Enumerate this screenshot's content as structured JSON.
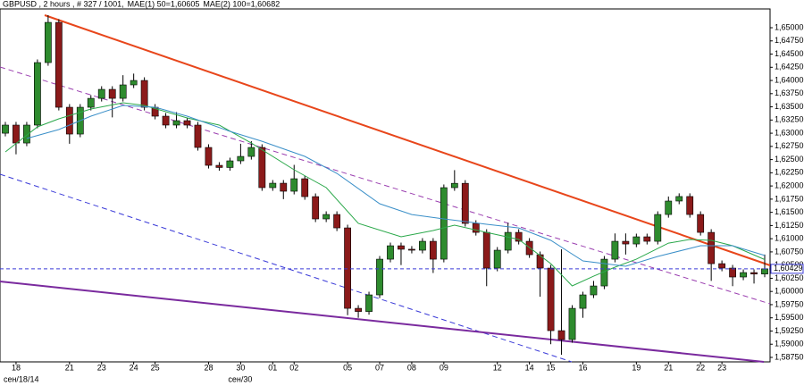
{
  "chart_data": {
    "type": "candlestick",
    "header": "GBPUSD , 2 hours , # 327 / 1001,",
    "categories": [
      null,
      "18",
      null,
      null,
      null,
      null,
      "21",
      null,
      null,
      "23",
      null,
      null,
      "24",
      null,
      "25",
      null,
      null,
      null,
      null,
      "28",
      null,
      null,
      "30",
      null,
      null,
      "01",
      null,
      "02",
      null,
      null,
      null,
      null,
      "05",
      null,
      null,
      "07",
      null,
      null,
      "08",
      null,
      null,
      "09",
      null,
      null,
      null,
      null,
      "12",
      null,
      null,
      "14",
      null,
      "15",
      null,
      null,
      "16",
      null,
      null,
      null,
      null,
      "19",
      null,
      null,
      "21",
      null,
      null,
      "22",
      null,
      "23",
      null,
      null,
      null,
      null
    ],
    "categories_secondary": [
      null,
      "сен/18/14",
      null,
      null,
      null,
      null,
      null,
      null,
      null,
      null,
      null,
      null,
      null,
      null,
      null,
      null,
      null,
      null,
      null,
      null,
      null,
      null,
      "сен/30",
      null,
      null,
      null,
      null,
      null,
      null,
      null,
      null,
      null,
      null,
      null,
      null,
      null,
      null,
      null,
      null,
      null,
      null,
      null,
      null,
      null,
      null,
      null,
      null,
      null,
      null,
      null,
      null,
      null,
      null,
      null,
      null,
      null,
      null,
      null,
      null,
      null,
      null,
      null,
      null,
      null,
      null,
      null,
      null,
      null,
      null,
      null,
      null,
      null
    ],
    "open": [
      1.63,
      1.63154,
      1.62814,
      1.63154,
      1.64339,
      1.65101,
      1.63492,
      1.62984,
      1.63492,
      1.63661,
      1.63831,
      1.63661,
      1.63916,
      1.64,
      1.63492,
      1.63323,
      1.63154,
      1.63238,
      1.63154,
      1.6273,
      1.62391,
      1.6235,
      1.62476,
      1.6256,
      1.6273,
      1.61968,
      1.62052,
      1.619,
      1.62137,
      1.61798,
      1.61375,
      1.61459,
      1.61205,
      1.5968,
      1.5962,
      1.59935,
      1.60612,
      1.60866,
      1.608,
      1.60782,
      1.60951,
      1.60612,
      1.61968,
      1.6205,
      1.6129,
      1.6112,
      1.60443,
      1.60782,
      1.6112,
      1.60951,
      1.60697,
      1.60443,
      1.59257,
      1.59088,
      1.5968,
      1.59935,
      1.60104,
      1.60612,
      1.60951,
      1.609,
      1.61036,
      1.60951,
      1.61459,
      1.61714,
      1.618,
      1.61459,
      1.6112,
      1.60527,
      1.60443,
      1.60274,
      1.60358,
      1.6033
    ],
    "high": [
      1.63214,
      1.63214,
      1.63214,
      1.64399,
      1.65237,
      1.65161,
      1.63552,
      1.63552,
      1.63721,
      1.63891,
      1.63891,
      1.641,
      1.6413,
      1.6406,
      1.63552,
      1.63383,
      1.634,
      1.63298,
      1.63214,
      1.6279,
      1.62451,
      1.62536,
      1.628,
      1.6285,
      1.6279,
      1.62112,
      1.62112,
      1.624,
      1.62197,
      1.61858,
      1.61519,
      1.61519,
      1.61265,
      1.5974,
      1.59995,
      1.60672,
      1.60926,
      1.60926,
      1.6086,
      1.61011,
      1.61011,
      1.62028,
      1.623,
      1.6211,
      1.6135,
      1.6118,
      1.60842,
      1.613,
      1.6118,
      1.61011,
      1.60757,
      1.60503,
      1.608,
      1.5974,
      1.59995,
      1.602,
      1.60672,
      1.611,
      1.611,
      1.61096,
      1.61096,
      1.61519,
      1.618,
      1.6186,
      1.6186,
      1.61519,
      1.6118,
      1.60587,
      1.60503,
      1.60418,
      1.60418,
      1.607
    ],
    "low": [
      1.6294,
      1.626,
      1.62754,
      1.63094,
      1.64279,
      1.63432,
      1.628,
      1.62924,
      1.63432,
      1.63601,
      1.633,
      1.63601,
      1.63856,
      1.63432,
      1.63263,
      1.63094,
      1.63094,
      1.63094,
      1.6267,
      1.62331,
      1.6229,
      1.6229,
      1.62416,
      1.625,
      1.61908,
      1.61908,
      1.6175,
      1.6184,
      1.61738,
      1.61315,
      1.61315,
      1.61145,
      1.5955,
      1.595,
      1.5956,
      1.59875,
      1.60552,
      1.605,
      1.60722,
      1.60722,
      1.6035,
      1.60552,
      1.61908,
      1.6123,
      1.6106,
      1.601,
      1.60383,
      1.60722,
      1.60891,
      1.60637,
      1.599,
      1.59,
      1.588,
      1.59028,
      1.595,
      1.59875,
      1.60044,
      1.60552,
      1.607,
      1.6084,
      1.60891,
      1.60891,
      1.61399,
      1.61654,
      1.61399,
      1.6106,
      1.602,
      1.60383,
      1.601,
      1.60214,
      1.6015,
      1.6027
    ],
    "close": [
      1.63154,
      1.62814,
      1.63154,
      1.64339,
      1.65101,
      1.63492,
      1.62984,
      1.63492,
      1.63661,
      1.63831,
      1.63661,
      1.63916,
      1.64,
      1.63492,
      1.63323,
      1.63154,
      1.63238,
      1.63154,
      1.6273,
      1.62391,
      1.6235,
      1.62476,
      1.6256,
      1.6273,
      1.61968,
      1.62052,
      1.619,
      1.62137,
      1.61798,
      1.61375,
      1.61459,
      1.61205,
      1.5968,
      1.5962,
      1.59935,
      1.60612,
      1.60866,
      1.608,
      1.60782,
      1.60951,
      1.60612,
      1.61968,
      1.6205,
      1.6129,
      1.6112,
      1.60443,
      1.60782,
      1.6112,
      1.60951,
      1.60697,
      1.60443,
      1.59257,
      1.59088,
      1.5968,
      1.59935,
      1.60104,
      1.60612,
      1.60951,
      1.609,
      1.61036,
      1.60951,
      1.61459,
      1.61714,
      1.618,
      1.61459,
      1.6112,
      1.60527,
      1.60443,
      1.60274,
      1.60358,
      1.6033,
      1.60429
    ],
    "up_color": "#2e8b2e",
    "down_color": "#8b1a1a",
    "series": [
      {
        "name": "MAE(1) 50=1,60605",
        "color": "#2aa84a",
        "x": [
          0,
          3,
          5,
          8,
          11,
          13,
          17,
          20,
          23,
          27,
          30,
          33,
          37,
          40,
          42,
          45,
          48,
          51,
          53,
          55,
          57,
          59,
          62,
          64,
          66,
          68,
          71
        ],
        "values": [
          1.62645,
          1.6312,
          1.63272,
          1.63458,
          1.63577,
          1.63526,
          1.63289,
          1.63154,
          1.62814,
          1.62307,
          1.61968,
          1.6129,
          1.61036,
          1.61155,
          1.61256,
          1.6112,
          1.60985,
          1.60527,
          1.60104,
          1.60289,
          1.6046,
          1.60612,
          1.60917,
          1.60985,
          1.60968,
          1.60867,
          1.60605
        ]
      },
      {
        "name": "MAE(2) 100=1,60682",
        "color": "#3a8fc8",
        "x": [
          2,
          5,
          8,
          11,
          14,
          17,
          21,
          24,
          28,
          31,
          35,
          38,
          41,
          45,
          48,
          51,
          54,
          58,
          61,
          65,
          68,
          71
        ],
        "values": [
          1.62899,
          1.63069,
          1.63323,
          1.63526,
          1.63492,
          1.63323,
          1.63035,
          1.62848,
          1.62561,
          1.62239,
          1.61663,
          1.61459,
          1.61375,
          1.61273,
          1.61205,
          1.60968,
          1.60579,
          1.60477,
          1.60663,
          1.60867,
          1.60867,
          1.60682
        ]
      }
    ],
    "current_price": {
      "value": 1.60429,
      "label": "1,60429"
    },
    "ylim": [
      1.58665,
      1.65356
    ],
    "yticks": [
      {
        "value": 1.5875,
        "label": "1,58750"
      },
      {
        "value": 1.59,
        "label": "1,59000"
      },
      {
        "value": 1.5925,
        "label": "1,59250"
      },
      {
        "value": 1.595,
        "label": "1,59500"
      },
      {
        "value": 1.5975,
        "label": "1,59750"
      },
      {
        "value": 1.6,
        "label": "1,60000"
      },
      {
        "value": 1.6025,
        "label": "1,60250"
      },
      {
        "value": 1.605,
        "label": "1,60500"
      },
      {
        "value": 1.6075,
        "label": "1,60750"
      },
      {
        "value": 1.61,
        "label": "1,61000"
      },
      {
        "value": 1.6125,
        "label": "1,61250"
      },
      {
        "value": 1.615,
        "label": "1,61500"
      },
      {
        "value": 1.6175,
        "label": "1,61750"
      },
      {
        "value": 1.62,
        "label": "1,62000"
      },
      {
        "value": 1.6225,
        "label": "1,62250"
      },
      {
        "value": 1.625,
        "label": "1,62500"
      },
      {
        "value": 1.6275,
        "label": "1,62750"
      },
      {
        "value": 1.63,
        "label": "1,63000"
      },
      {
        "value": 1.6325,
        "label": "1,63250"
      },
      {
        "value": 1.635,
        "label": "1,63500"
      },
      {
        "value": 1.6375,
        "label": "1,63750"
      },
      {
        "value": 1.64,
        "label": "1,64000"
      },
      {
        "value": 1.6425,
        "label": "1,64250"
      },
      {
        "value": 1.645,
        "label": "1,64500"
      },
      {
        "value": 1.6475,
        "label": "1,64750"
      },
      {
        "value": 1.65,
        "label": "1,65000"
      }
    ],
    "grid": false
  }
}
